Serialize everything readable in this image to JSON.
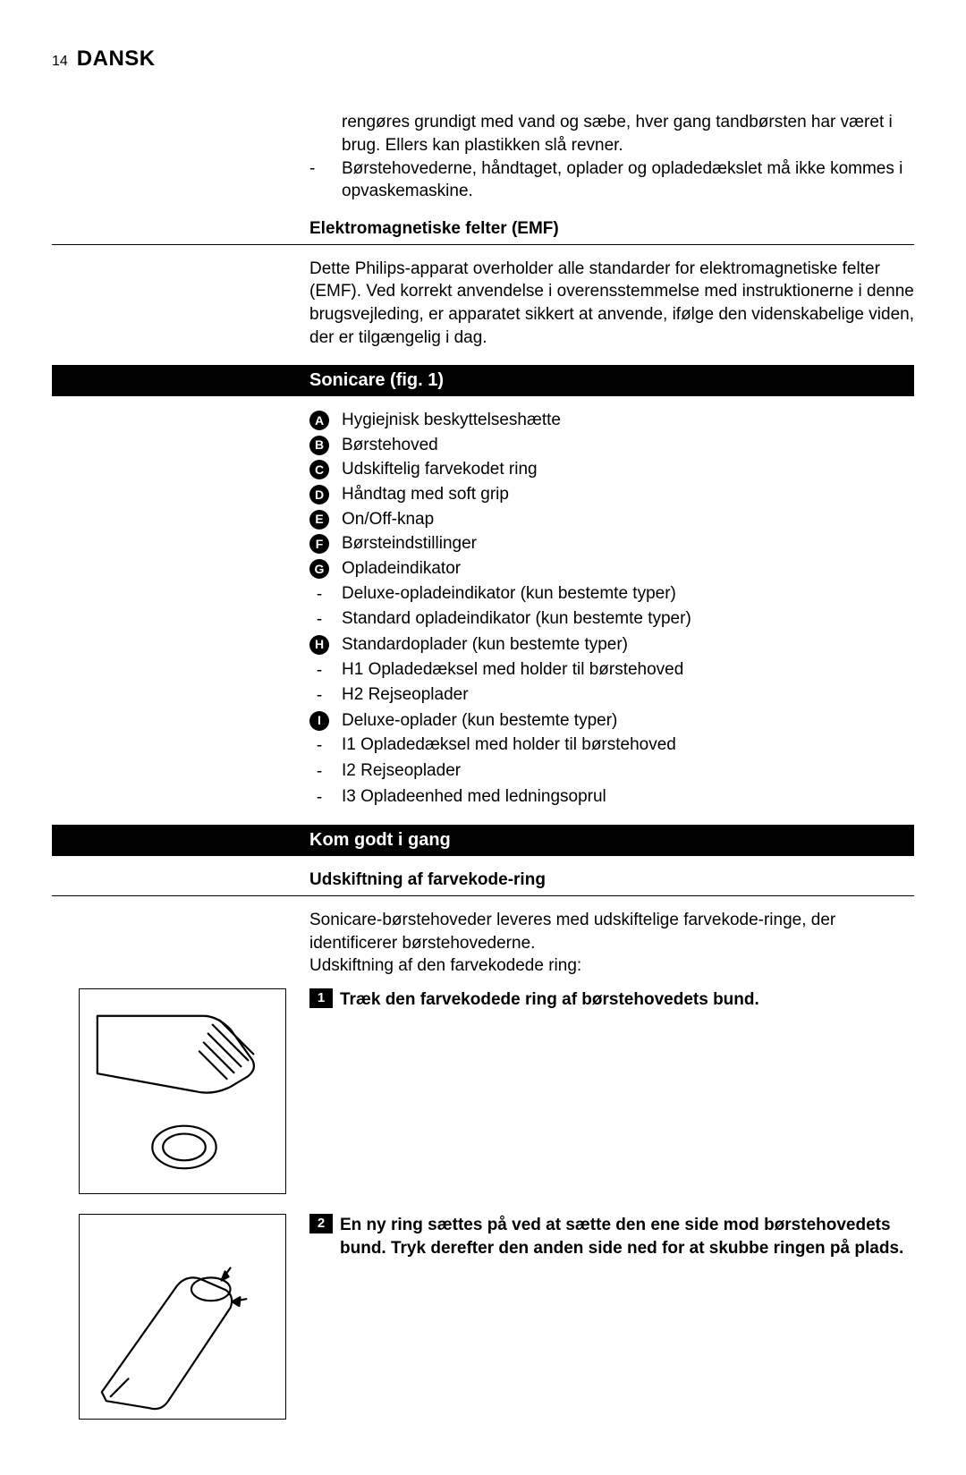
{
  "page_number": "14",
  "language": "DANSK",
  "intro_bullets": [
    "rengøres grundigt med vand og sæbe, hver gang tandbørsten har været i brug. Ellers kan plastikken slå revner.",
    "Børstehovederne, håndtaget, oplader og opladedækslet må ikke kommes i opvaskemaskine."
  ],
  "emf": {
    "heading": "Elektromagnetiske felter (EMF)",
    "body": "Dette Philips-apparat overholder alle standarder for elektromagnetiske felter (EMF). Ved korrekt anvendelse i overensstemmelse med instruktionerne i denne brugsvejleding, er apparatet sikkert at anvende, ifølge den videnskabelige viden, der er tilgængelig i dag."
  },
  "sonicare": {
    "heading": "Sonicare (fig. 1)",
    "items": [
      {
        "badge": "A",
        "text": "Hygiejnisk beskyttelseshætte"
      },
      {
        "badge": "B",
        "text": "Børstehoved"
      },
      {
        "badge": "C",
        "text": "Udskiftelig farvekodet ring"
      },
      {
        "badge": "D",
        "text": "Håndtag med soft grip"
      },
      {
        "badge": "E",
        "text": "On/Off-knap"
      },
      {
        "badge": "F",
        "text": "Børsteindstillinger"
      },
      {
        "badge": "G",
        "text": "Opladeindikator"
      },
      {
        "badge": "-",
        "text": "Deluxe-opladeindikator (kun bestemte typer)"
      },
      {
        "badge": "-",
        "text": "Standard opladeindikator (kun bestemte typer)"
      },
      {
        "badge": "H",
        "text": "Standardoplader (kun bestemte typer)"
      },
      {
        "badge": "-",
        "text": "H1 Opladedæksel med holder til børstehoved"
      },
      {
        "badge": "-",
        "text": "H2 Rejseoplader"
      },
      {
        "badge": "I",
        "text": "Deluxe-oplader (kun bestemte typer)"
      },
      {
        "badge": "-",
        "text": "I1 Opladedæksel med holder til børstehoved"
      },
      {
        "badge": "-",
        "text": "I2 Rejseoplader"
      },
      {
        "badge": "-",
        "text": "I3 Opladeenhed med ledningsoprul"
      }
    ]
  },
  "getting_started": {
    "heading": "Kom godt i gang",
    "subhead": "Udskiftning af farvekode-ring",
    "intro": "Sonicare-børstehoveder leveres med udskiftelige farvekode-ringe, der identificerer børstehovederne.\nUdskiftning af den farvekodede ring:",
    "steps": [
      {
        "num": "1",
        "text": "Træk den farvekodede ring af børstehovedets bund."
      },
      {
        "num": "2",
        "text": "En ny ring sættes på ved at sætte den ene side mod børstehovedets bund. Tryk derefter den anden side ned for at skubbe ringen på plads."
      }
    ]
  }
}
